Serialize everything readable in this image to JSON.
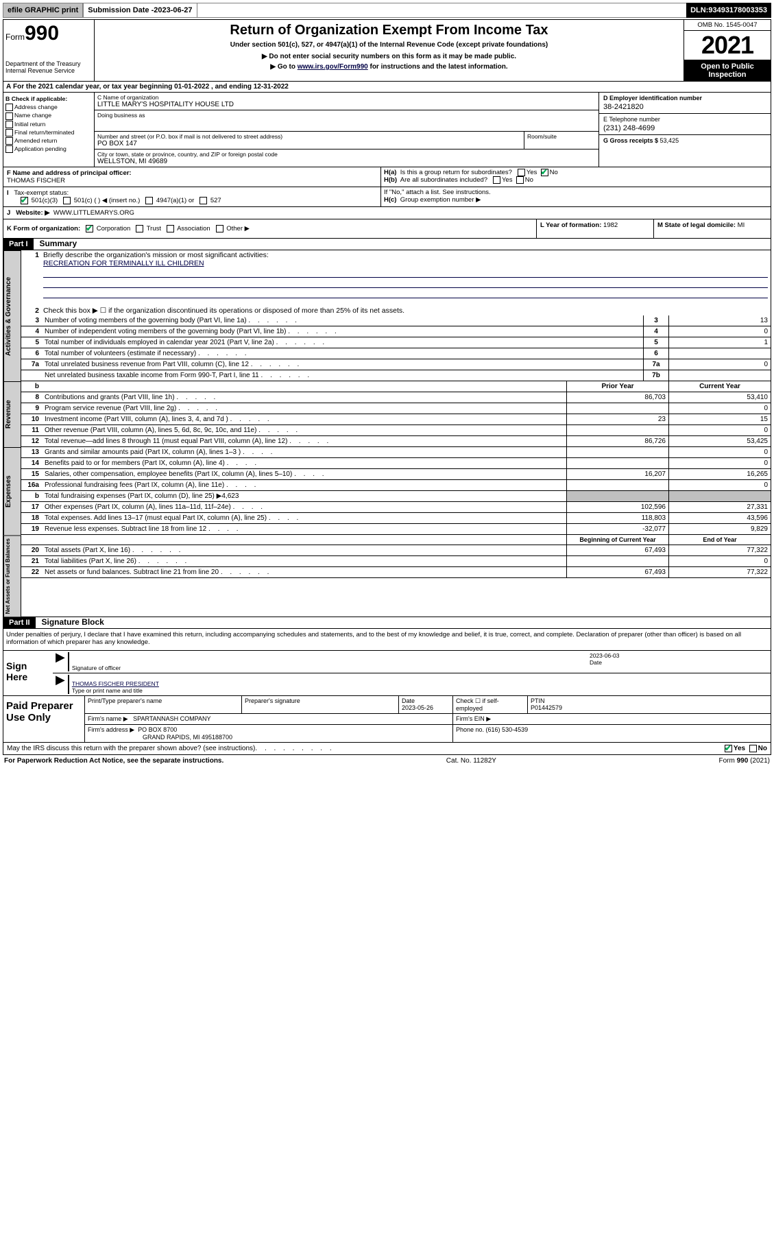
{
  "topbar": {
    "efile": "efile GRAPHIC print",
    "subdate_label": "Submission Date - ",
    "subdate": "2023-06-27",
    "dln_label": "DLN: ",
    "dln": "93493178003353"
  },
  "header": {
    "form_prefix": "Form",
    "form_num": "990",
    "dept": "Department of the Treasury",
    "irs": "Internal Revenue Service",
    "title": "Return of Organization Exempt From Income Tax",
    "sub1": "Under section 501(c), 527, or 4947(a)(1) of the Internal Revenue Code (except private foundations)",
    "sub2": "▶ Do not enter social security numbers on this form as it may be made public.",
    "sub3_pre": "▶ Go to ",
    "sub3_link": "www.irs.gov/Form990",
    "sub3_post": " for instructions and the latest information.",
    "omb": "OMB No. 1545-0047",
    "year": "2021",
    "open": "Open to Public Inspection"
  },
  "A": {
    "text": "For the 2021 calendar year, or tax year beginning ",
    "begin": "01-01-2022",
    "mid": " , and ending ",
    "end": "12-31-2022"
  },
  "B": {
    "label": "B Check if applicable:",
    "opts": [
      "Address change",
      "Name change",
      "Initial return",
      "Final return/terminated",
      "Amended return",
      "Application pending"
    ]
  },
  "C": {
    "name_label": "C Name of organization",
    "name": "LITTLE MARY'S HOSPITALITY HOUSE LTD",
    "dba_label": "Doing business as",
    "street_label": "Number and street (or P.O. box if mail is not delivered to street address)",
    "room_label": "Room/suite",
    "street": "PO BOX 147",
    "city_label": "City or town, state or province, country, and ZIP or foreign postal code",
    "city": "WELLSTON, MI  49689"
  },
  "D": {
    "label": "D Employer identification number",
    "val": "38-2421820"
  },
  "E": {
    "label": "E Telephone number",
    "val": "(231) 248-4699"
  },
  "G": {
    "label": "G Gross receipts $ ",
    "val": "53,425"
  },
  "F": {
    "label": "F Name and address of principal officer:",
    "val": "THOMAS FISCHER"
  },
  "H": {
    "a_label": "H(a)",
    "a_text": "Is this a group return for subordinates?",
    "a_yes": "Yes",
    "a_no": "No",
    "b_label": "H(b)",
    "b_text": "Are all subordinates included?",
    "b_yes": "Yes",
    "b_no": "No",
    "b_note": "If \"No,\" attach a list. See instructions.",
    "c_label": "H(c)",
    "c_text": "Group exemption number ▶"
  },
  "I": {
    "label": "I",
    "text": "Tax-exempt status:",
    "opts": [
      "501(c)(3)",
      "501(c) ( ) ◀ (insert no.)",
      "4947(a)(1) or",
      "527"
    ]
  },
  "J": {
    "label": "J",
    "text": "Website: ▶",
    "val": "WWW.LITTLEMARYS.ORG"
  },
  "K": {
    "label": "K Form of organization:",
    "opts": [
      "Corporation",
      "Trust",
      "Association",
      "Other ▶"
    ]
  },
  "L": {
    "label": "L Year of formation: ",
    "val": "1982"
  },
  "M": {
    "label": "M State of legal domicile: ",
    "val": "MI"
  },
  "part1": {
    "hdr": "Part I",
    "title": "Summary",
    "q1_label": "1",
    "q1_text": "Briefly describe the organization's mission or most significant activities:",
    "q1_val": "RECREATION FOR TERMINALLY ILL CHILDREN",
    "q2_label": "2",
    "q2_text": "Check this box ▶ ☐  if the organization discontinued its operations or disposed of more than 25% of its net assets."
  },
  "gov_lines": [
    {
      "n": "3",
      "t": "Number of voting members of the governing body (Part VI, line 1a)",
      "box": "3",
      "v": "13"
    },
    {
      "n": "4",
      "t": "Number of independent voting members of the governing body (Part VI, line 1b)",
      "box": "4",
      "v": "0"
    },
    {
      "n": "5",
      "t": "Total number of individuals employed in calendar year 2021 (Part V, line 2a)",
      "box": "5",
      "v": "1"
    },
    {
      "n": "6",
      "t": "Total number of volunteers (estimate if necessary)",
      "box": "6",
      "v": ""
    },
    {
      "n": "7a",
      "t": "Total unrelated business revenue from Part VIII, column (C), line 12",
      "box": "7a",
      "v": "0"
    },
    {
      "n": "",
      "t": "Net unrelated business taxable income from Form 990-T, Part I, line 11",
      "box": "7b",
      "v": ""
    }
  ],
  "colhdr": {
    "b": "b",
    "prior": "Prior Year",
    "curr": "Current Year"
  },
  "rev_lines": [
    {
      "n": "8",
      "t": "Contributions and grants (Part VIII, line 1h)",
      "p": "86,703",
      "c": "53,410"
    },
    {
      "n": "9",
      "t": "Program service revenue (Part VIII, line 2g)",
      "p": "",
      "c": "0"
    },
    {
      "n": "10",
      "t": "Investment income (Part VIII, column (A), lines 3, 4, and 7d )",
      "p": "23",
      "c": "15"
    },
    {
      "n": "11",
      "t": "Other revenue (Part VIII, column (A), lines 5, 6d, 8c, 9c, 10c, and 11e)",
      "p": "",
      "c": "0"
    },
    {
      "n": "12",
      "t": "Total revenue—add lines 8 through 11 (must equal Part VIII, column (A), line 12)",
      "p": "86,726",
      "c": "53,425"
    }
  ],
  "exp_lines": [
    {
      "n": "13",
      "t": "Grants and similar amounts paid (Part IX, column (A), lines 1–3 )",
      "p": "",
      "c": "0"
    },
    {
      "n": "14",
      "t": "Benefits paid to or for members (Part IX, column (A), line 4)",
      "p": "",
      "c": "0"
    },
    {
      "n": "15",
      "t": "Salaries, other compensation, employee benefits (Part IX, column (A), lines 5–10)",
      "p": "16,207",
      "c": "16,265"
    },
    {
      "n": "16a",
      "t": "Professional fundraising fees (Part IX, column (A), line 11e)",
      "p": "",
      "c": "0"
    },
    {
      "n": "b",
      "t": "Total fundraising expenses (Part IX, column (D), line 25) ▶4,623",
      "p": "SHADE",
      "c": "SHADE"
    },
    {
      "n": "17",
      "t": "Other expenses (Part IX, column (A), lines 11a–11d, 11f–24e)",
      "p": "102,596",
      "c": "27,331"
    },
    {
      "n": "18",
      "t": "Total expenses. Add lines 13–17 (must equal Part IX, column (A), line 25)",
      "p": "118,803",
      "c": "43,596"
    },
    {
      "n": "19",
      "t": "Revenue less expenses. Subtract line 18 from line 12",
      "p": "-32,077",
      "c": "9,829"
    }
  ],
  "na_hdr": {
    "boy": "Beginning of Current Year",
    "eoy": "End of Year"
  },
  "na_lines": [
    {
      "n": "20",
      "t": "Total assets (Part X, line 16)",
      "p": "67,493",
      "c": "77,322"
    },
    {
      "n": "21",
      "t": "Total liabilities (Part X, line 26)",
      "p": "",
      "c": "0"
    },
    {
      "n": "22",
      "t": "Net assets or fund balances. Subtract line 21 from line 20",
      "p": "67,493",
      "c": "77,322"
    }
  ],
  "vtabs": {
    "gov": "Activities & Governance",
    "rev": "Revenue",
    "exp": "Expenses",
    "na": "Net Assets or Fund Balances"
  },
  "part2": {
    "hdr": "Part II",
    "title": "Signature Block",
    "decl": "Under penalties of perjury, I declare that I have examined this return, including accompanying schedules and statements, and to the best of my knowledge and belief, it is true, correct, and complete. Declaration of preparer (other than officer) is based on all information of which preparer has any knowledge."
  },
  "sign": {
    "here": "Sign Here",
    "sig_label": "Signature of officer",
    "date_label": "Date",
    "date": "2023-06-03",
    "name": "THOMAS FISCHER  PRESIDENT",
    "name_label": "Type or print name and title"
  },
  "paid": {
    "here": "Paid Preparer Use Only",
    "r1": {
      "c1": "Print/Type preparer's name",
      "c2": "Preparer's signature",
      "c3_label": "Date",
      "c3": "2023-05-26",
      "c4_label": "Check ☐ if self-employed",
      "c5_label": "PTIN",
      "c5": "P01442579"
    },
    "r2": {
      "c1_label": "Firm's name   ▶",
      "c1": "SPARTANNASH COMPANY",
      "c2_label": "Firm's EIN ▶",
      "c2": ""
    },
    "r3": {
      "c1_label": "Firm's address ▶",
      "c1": "PO BOX 8700",
      "c1b": "GRAND RAPIDS, MI  495188700",
      "c2_label": "Phone no. ",
      "c2": "(616) 530-4539"
    }
  },
  "may": {
    "text": "May the IRS discuss this return with the preparer shown above? (see instructions)",
    "yes": "Yes",
    "no": "No"
  },
  "footer": {
    "l": "For Paperwork Reduction Act Notice, see the separate instructions.",
    "c": "Cat. No. 11282Y",
    "r": "Form 990 (2021)"
  }
}
